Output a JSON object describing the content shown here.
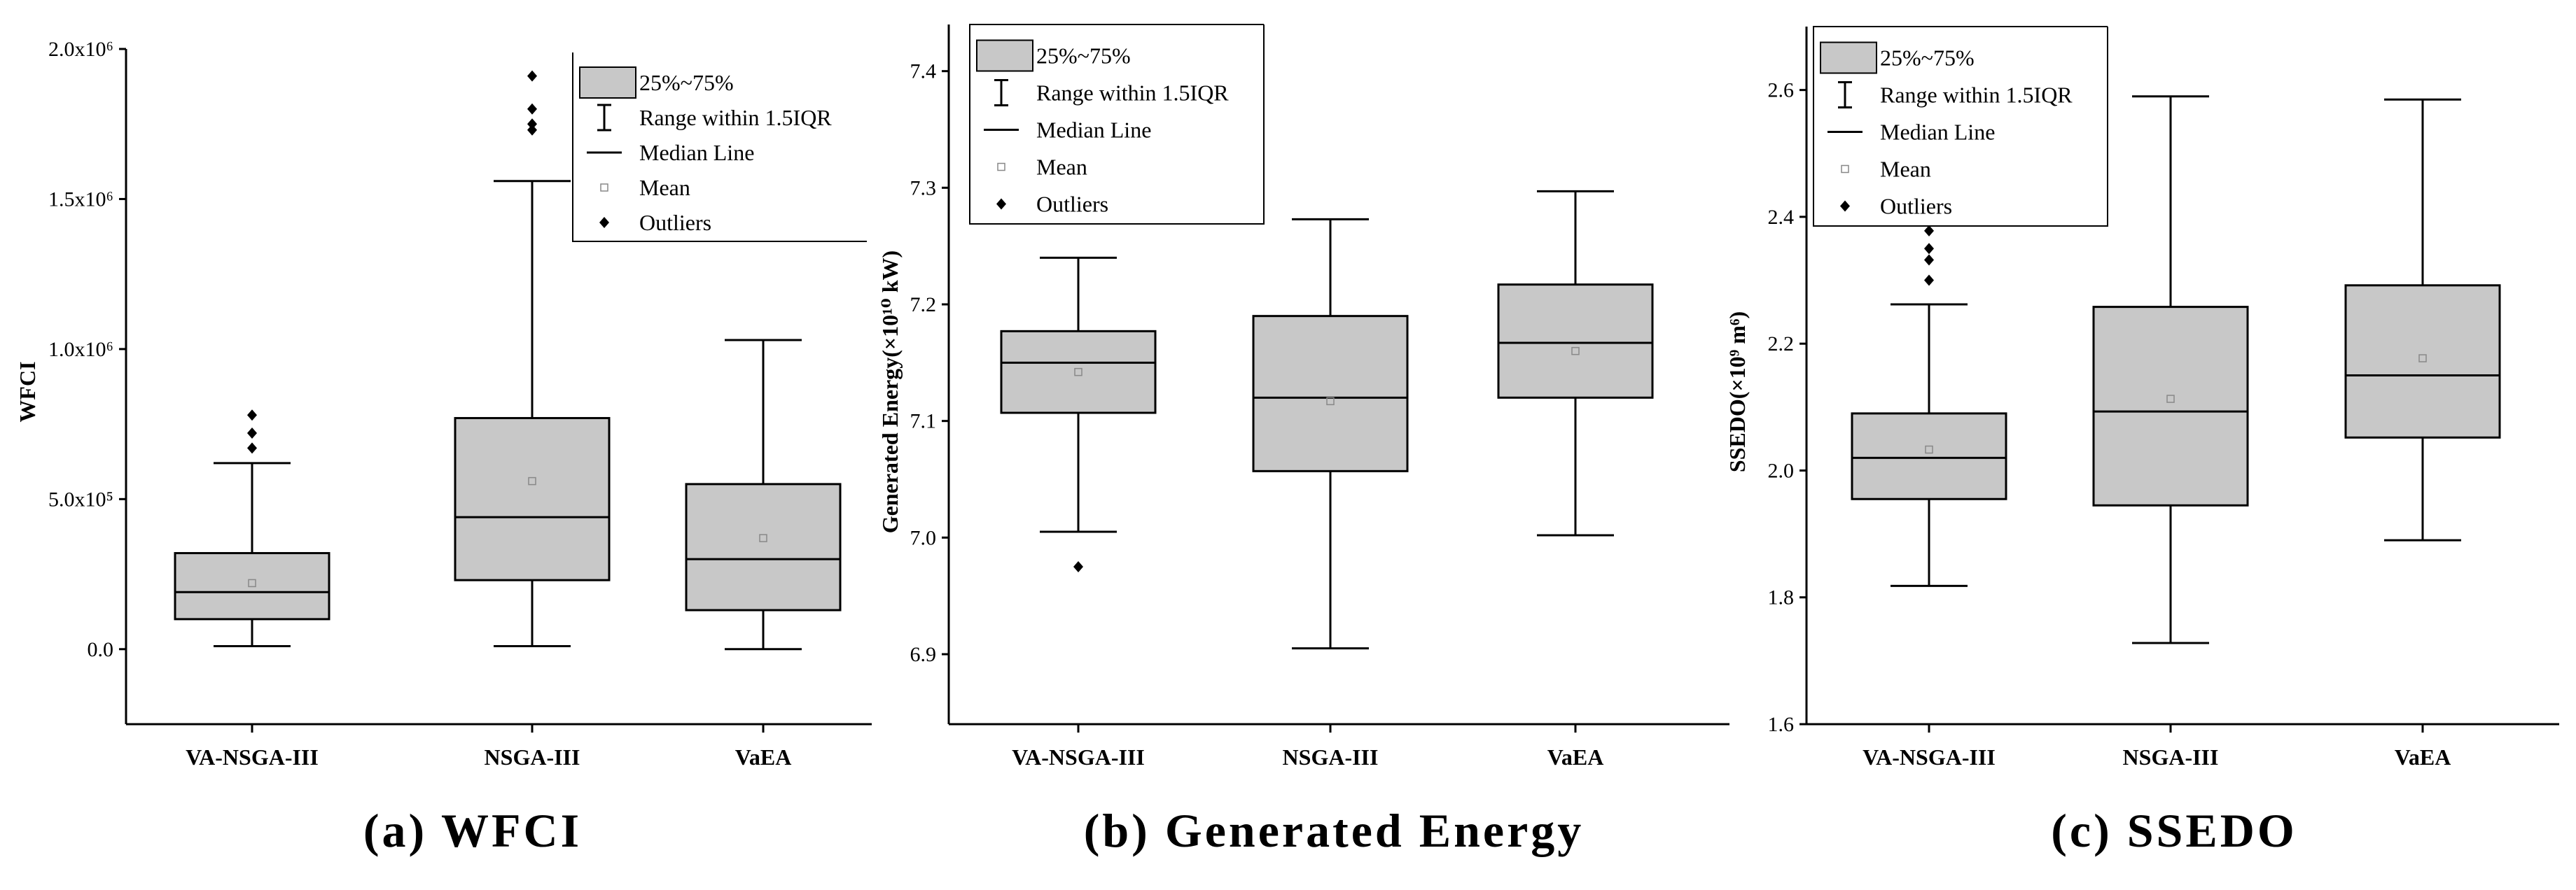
{
  "chart_data": [
    {
      "type": "box",
      "title": "(a) WFCI",
      "ylabel": "WFCI",
      "xlabel": "",
      "ylim": [
        -250000,
        2000000
      ],
      "yticks": [
        0,
        500000,
        1000000,
        1500000,
        2000000
      ],
      "ytick_labels": [
        "0.0",
        "5.0x10⁵",
        "1.0x10⁶",
        "1.5x10⁶",
        "2.0x10⁶"
      ],
      "categories": [
        "VA-NSGA-III",
        "NSGA-III",
        "VaEA"
      ],
      "boxes": [
        {
          "whisker_low": 10000,
          "q1": 100000,
          "median": 190000,
          "q3": 320000,
          "whisker_high": 620000,
          "mean": 220000,
          "outliers": [
            670000,
            720000,
            780000
          ]
        },
        {
          "whisker_low": 10000,
          "q1": 230000,
          "median": 440000,
          "q3": 770000,
          "whisker_high": 1560000,
          "mean": 560000,
          "outliers": [
            1730000,
            1750000,
            1800000,
            1910000
          ]
        },
        {
          "whisker_low": 0,
          "q1": 130000,
          "median": 300000,
          "q3": 550000,
          "whisker_high": 1030000,
          "mean": 370000,
          "outliers": []
        }
      ],
      "legend": {
        "placement": "top-right",
        "entries": [
          "25%~75%",
          "Range within 1.5IQR",
          "Median Line",
          "Mean",
          "Outliers"
        ]
      }
    },
    {
      "type": "box",
      "title": "(b) Generated Energy",
      "ylabel": "Generated Energy(×10¹⁰ kW)",
      "xlabel": "",
      "ylim": [
        6.84,
        7.44
      ],
      "yticks": [
        6.9,
        7.0,
        7.1,
        7.2,
        7.3,
        7.4
      ],
      "ytick_labels": [
        "6.9",
        "7.0",
        "7.1",
        "7.2",
        "7.3",
        "7.4"
      ],
      "categories": [
        "VA-NSGA-III",
        "NSGA-III",
        "VaEA"
      ],
      "boxes": [
        {
          "whisker_low": 7.005,
          "q1": 7.107,
          "median": 7.15,
          "q3": 7.177,
          "whisker_high": 7.24,
          "mean": 7.142,
          "outliers": [
            6.975
          ]
        },
        {
          "whisker_low": 6.905,
          "q1": 7.057,
          "median": 7.12,
          "q3": 7.19,
          "whisker_high": 7.273,
          "mean": 7.117,
          "outliers": []
        },
        {
          "whisker_low": 7.002,
          "q1": 7.12,
          "median": 7.167,
          "q3": 7.217,
          "whisker_high": 7.297,
          "mean": 7.16,
          "outliers": []
        }
      ],
      "legend": {
        "placement": "top-left",
        "entries": [
          "25%~75%",
          "Range within 1.5IQR",
          "Median Line",
          "Mean",
          "Outliers"
        ]
      }
    },
    {
      "type": "box",
      "title": "(c) SSEDO",
      "ylabel": "SSEDO(×10⁹ m⁶)",
      "xlabel": "",
      "ylim": [
        1.6,
        2.7
      ],
      "yticks": [
        1.6,
        1.8,
        2.0,
        2.2,
        2.4,
        2.6
      ],
      "ytick_labels": [
        "1.6",
        "1.8",
        "2.0",
        "2.2",
        "2.4",
        "2.6"
      ],
      "categories": [
        "VA-NSGA-III",
        "NSGA-III",
        "VaEA"
      ],
      "boxes": [
        {
          "whisker_low": 1.818,
          "q1": 1.955,
          "median": 2.02,
          "q3": 2.09,
          "whisker_high": 2.262,
          "mean": 2.033,
          "outliers": [
            2.3,
            2.332,
            2.35,
            2.378
          ]
        },
        {
          "whisker_low": 1.728,
          "q1": 1.945,
          "median": 2.093,
          "q3": 2.258,
          "whisker_high": 2.59,
          "mean": 2.113,
          "outliers": []
        },
        {
          "whisker_low": 1.89,
          "q1": 2.052,
          "median": 2.15,
          "q3": 2.292,
          "whisker_high": 2.585,
          "mean": 2.177,
          "outliers": []
        }
      ],
      "legend": {
        "placement": "top-left",
        "entries": [
          "25%~75%",
          "Range within 1.5IQR",
          "Median Line",
          "Mean",
          "Outliers"
        ]
      }
    }
  ],
  "colors": {
    "box_fill": "#c8c8c8",
    "ink": "#000000",
    "mean_marker": "#888888"
  }
}
